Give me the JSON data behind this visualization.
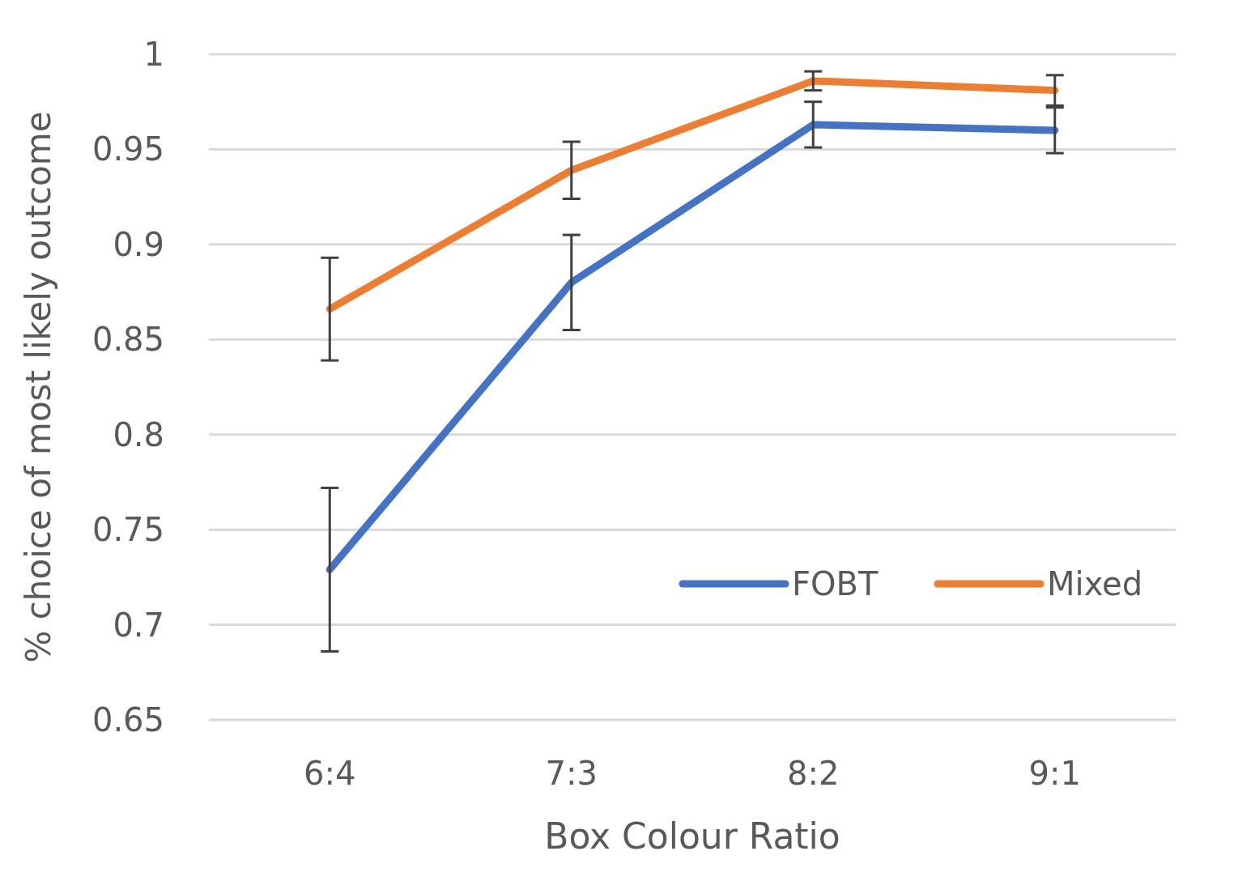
{
  "chart_data": {
    "type": "line",
    "xlabel": "Box Colour Ratio",
    "ylabel": "% choice of most likely outcome",
    "categories": [
      "6:4",
      "7:3",
      "8:2",
      "9:1"
    ],
    "series": [
      {
        "name": "FOBT",
        "color": "#4472c4",
        "values": [
          0.729,
          0.88,
          0.963,
          0.96
        ],
        "errors": [
          0.043,
          0.025,
          0.012,
          0.012
        ]
      },
      {
        "name": "Mixed",
        "color": "#ed7d31",
        "values": [
          0.866,
          0.939,
          0.986,
          0.981
        ],
        "errors": [
          0.027,
          0.015,
          0.005,
          0.008
        ]
      }
    ],
    "ylim": [
      0.65,
      1
    ],
    "yticks": [
      {
        "value": 0.65,
        "label": "0.65"
      },
      {
        "value": 0.7,
        "label": "0.7"
      },
      {
        "value": 0.75,
        "label": "0.75"
      },
      {
        "value": 0.8,
        "label": "0.8"
      },
      {
        "value": 0.85,
        "label": "0.85"
      },
      {
        "value": 0.9,
        "label": "0.9"
      },
      {
        "value": 0.95,
        "label": "0.95"
      },
      {
        "value": 1,
        "label": "1"
      }
    ],
    "grid": "y",
    "legend": "bottom right",
    "marker": "none",
    "line_style": "solid"
  }
}
